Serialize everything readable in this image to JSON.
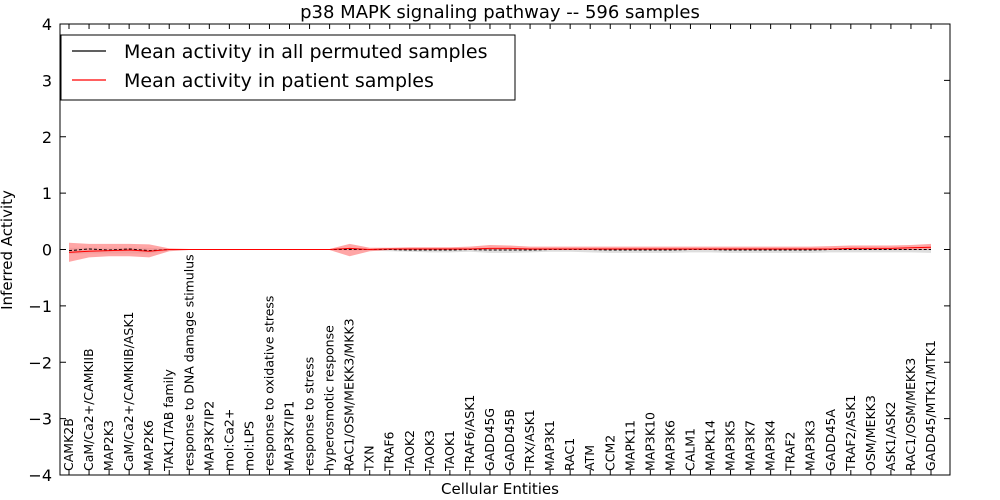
{
  "chart_data": {
    "type": "line",
    "title": "p38 MAPK signaling pathway -- 596 samples",
    "xlabel": "Cellular Entities",
    "ylabel": "Inferred Activity",
    "ylim": [
      -4,
      4
    ],
    "yticks": [
      -4,
      -3,
      -2,
      -1,
      0,
      1,
      2,
      3,
      4
    ],
    "ytick_labels": [
      "−4",
      "−3",
      "−2",
      "−1",
      "0",
      "1",
      "2",
      "3",
      "4"
    ],
    "legend_position": "top-left",
    "categories": [
      "CAMK2B",
      "CaM/Ca2+/CAMKIIB",
      "MAP2K3",
      "CaM/Ca2+/CAMKIIB/ASK1",
      "MAP2K6",
      "TAK1/TAB family",
      "response to DNA damage stimulus",
      "MAP3K7IP2",
      "mol:Ca2+",
      "mol:LPS",
      "response to oxidative stress",
      "MAP3K7IP1",
      "response to stress",
      "hyperosmotic response",
      "RAC1/OSM/MEKK3/MKK3",
      "TXN",
      "TRAF6",
      "TAOK2",
      "TAOK3",
      "TAOK1",
      "TRAF6/ASK1",
      "GADD45G",
      "GADD45B",
      "TRX/ASK1",
      "MAP3K1",
      "RAC1",
      "ATM",
      "CCM2",
      "MAPK11",
      "MAP3K10",
      "MAP3K6",
      "CALM1",
      "MAPK14",
      "MAP3K5",
      "MAP3K7",
      "MAP3K4",
      "TRAF2",
      "MAP3K3",
      "GADD45A",
      "TRAF2/ASK1",
      "OSM/MEKK3",
      "ASK1/ASK2",
      "RAC1/OSM/MEKK3",
      "GADD45/MTK1/MTK1"
    ],
    "series": [
      {
        "name": "Mean activity in all permuted samples",
        "color": "#000000",
        "style": "dashed",
        "values": [
          -0.02,
          0.01,
          -0.01,
          0.01,
          -0.02,
          0.0,
          0.0,
          0.0,
          0.0,
          0.0,
          0.0,
          0.0,
          0.0,
          0.0,
          0.0,
          0.0,
          0.0,
          -0.01,
          -0.01,
          -0.01,
          0.0,
          -0.01,
          -0.01,
          -0.01,
          0.0,
          0.0,
          0.0,
          -0.01,
          -0.01,
          -0.01,
          -0.01,
          0.0,
          0.0,
          -0.01,
          -0.01,
          -0.01,
          -0.01,
          -0.01,
          0.0,
          0.0,
          0.0,
          0.0,
          0.0,
          0.0
        ],
        "band_lower": [
          -0.08,
          -0.07,
          -0.07,
          -0.07,
          -0.07,
          -0.02,
          -0.01,
          -0.01,
          -0.01,
          -0.01,
          -0.01,
          -0.01,
          -0.01,
          -0.01,
          -0.02,
          -0.02,
          -0.03,
          -0.04,
          -0.05,
          -0.05,
          -0.04,
          -0.06,
          -0.06,
          -0.05,
          -0.04,
          -0.04,
          -0.05,
          -0.06,
          -0.06,
          -0.06,
          -0.06,
          -0.05,
          -0.05,
          -0.06,
          -0.06,
          -0.06,
          -0.06,
          -0.06,
          -0.05,
          -0.05,
          -0.05,
          -0.05,
          -0.05,
          -0.06
        ],
        "band_upper": [
          0.03,
          0.03,
          0.03,
          0.03,
          0.03,
          0.01,
          0.01,
          0.01,
          0.01,
          0.01,
          0.01,
          0.01,
          0.01,
          0.01,
          0.01,
          0.01,
          0.02,
          0.02,
          0.02,
          0.02,
          0.02,
          0.02,
          0.02,
          0.02,
          0.02,
          0.02,
          0.02,
          0.02,
          0.02,
          0.02,
          0.02,
          0.02,
          0.02,
          0.02,
          0.02,
          0.02,
          0.02,
          0.02,
          0.02,
          0.02,
          0.02,
          0.02,
          0.02,
          0.02
        ],
        "band_color": "#c8c8c8"
      },
      {
        "name": "Mean activity in patient samples",
        "color": "#ff0000",
        "style": "solid",
        "values": [
          -0.05,
          -0.03,
          -0.02,
          -0.01,
          -0.03,
          0.0,
          0.0,
          0.0,
          0.0,
          0.0,
          0.0,
          0.0,
          0.0,
          0.0,
          0.02,
          0.0,
          0.01,
          0.01,
          0.01,
          0.01,
          0.01,
          0.02,
          0.02,
          0.01,
          0.01,
          0.01,
          0.01,
          0.01,
          0.01,
          0.01,
          0.01,
          0.01,
          0.01,
          0.01,
          0.01,
          0.01,
          0.01,
          0.01,
          0.01,
          0.02,
          0.02,
          0.02,
          0.03,
          0.04
        ],
        "band_lower": [
          -0.22,
          -0.14,
          -0.12,
          -0.12,
          -0.14,
          -0.03,
          -0.01,
          -0.01,
          -0.01,
          -0.01,
          -0.01,
          -0.01,
          -0.01,
          -0.01,
          -0.12,
          -0.03,
          -0.01,
          -0.01,
          -0.01,
          -0.01,
          -0.01,
          -0.01,
          -0.01,
          -0.01,
          -0.01,
          -0.01,
          -0.01,
          -0.01,
          -0.01,
          -0.01,
          -0.01,
          -0.01,
          -0.01,
          -0.01,
          -0.01,
          -0.01,
          -0.01,
          -0.01,
          -0.01,
          -0.01,
          -0.01,
          -0.01,
          -0.01,
          0.0
        ],
        "band_upper": [
          0.12,
          0.1,
          0.1,
          0.1,
          0.09,
          0.02,
          0.01,
          0.01,
          0.01,
          0.01,
          0.01,
          0.01,
          0.01,
          0.01,
          0.1,
          0.03,
          0.03,
          0.04,
          0.04,
          0.04,
          0.05,
          0.08,
          0.07,
          0.05,
          0.05,
          0.05,
          0.05,
          0.05,
          0.05,
          0.05,
          0.05,
          0.05,
          0.05,
          0.05,
          0.05,
          0.05,
          0.05,
          0.05,
          0.06,
          0.07,
          0.07,
          0.07,
          0.08,
          0.1
        ],
        "band_color": "#ff8080"
      }
    ]
  }
}
